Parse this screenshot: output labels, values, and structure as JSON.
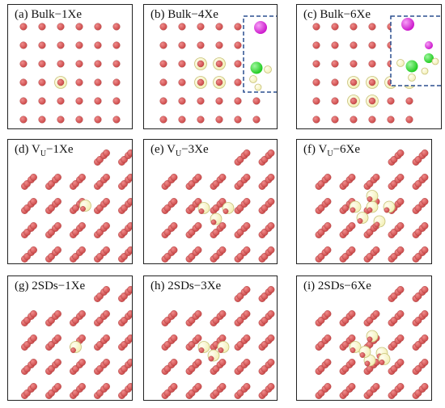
{
  "figure": {
    "panels": [
      {
        "id": "a",
        "letter": "(a)",
        "label": "Bulk−1Xe",
        "kind": "bulk",
        "xe": [
          [
            2,
            3
          ]
        ],
        "inset": "none"
      },
      {
        "id": "b",
        "letter": "(b)",
        "label": "Bulk−4Xe",
        "kind": "bulk",
        "xe": [
          [
            2,
            2
          ],
          [
            3,
            2
          ],
          [
            2,
            3
          ],
          [
            3,
            3
          ]
        ],
        "inset": "bulk4"
      },
      {
        "id": "c",
        "letter": "(c)",
        "label": "Bulk−6Xe",
        "kind": "bulk",
        "xe": [
          [
            2,
            3
          ],
          [
            3,
            3
          ],
          [
            4,
            3
          ],
          [
            5,
            3
          ],
          [
            2,
            4
          ],
          [
            3,
            4
          ]
        ],
        "inset": "bulk6"
      },
      {
        "id": "d",
        "letter": "(d)",
        "label": "V",
        "sub": "U",
        "suffix": "−1Xe",
        "kind": "diag",
        "xe": [
          [
            0.5,
            -0.2
          ]
        ],
        "inset": "none"
      },
      {
        "id": "e",
        "letter": "(e)",
        "label": "V",
        "sub": "U",
        "suffix": "−3Xe",
        "kind": "diag",
        "xe": [
          [
            -0.4,
            -0.1
          ],
          [
            0.6,
            -0.1
          ],
          [
            0.1,
            0.35
          ]
        ],
        "inset": "none"
      },
      {
        "id": "f",
        "letter": "(f)",
        "label": "V",
        "sub": "U",
        "suffix": "−6Xe",
        "kind": "diag",
        "xe": [
          [
            -0.5,
            -0.15
          ],
          [
            0.2,
            -0.15
          ],
          [
            0.9,
            -0.15
          ],
          [
            -0.2,
            0.3
          ],
          [
            0.5,
            0.45
          ],
          [
            0.2,
            -0.6
          ]
        ],
        "inset": "none"
      },
      {
        "id": "g",
        "letter": "(g)",
        "label": "2SDs−1Xe",
        "kind": "diag",
        "xe": [
          [
            0.1,
            0.0
          ]
        ],
        "inset": "none"
      },
      {
        "id": "h",
        "letter": "(h)",
        "label": "2SDs−3Xe",
        "kind": "diag",
        "xe": [
          [
            -0.4,
            0.0
          ],
          [
            0.4,
            0.0
          ],
          [
            0.0,
            0.35
          ]
        ],
        "inset": "none"
      },
      {
        "id": "i",
        "letter": "(i)",
        "label": "2SDs−6Xe",
        "kind": "diag",
        "xe": [
          [
            -0.5,
            0.0
          ],
          [
            0.2,
            -0.45
          ],
          [
            0.6,
            0.25
          ],
          [
            0.1,
            0.55
          ],
          [
            0.7,
            0.5
          ],
          [
            -0.1,
            0.2
          ]
        ],
        "inset": "none"
      }
    ]
  },
  "colors": {
    "uranium": "#cc4a4a",
    "uranium_highlight": "#f08c8c",
    "xenon": "#f3f0b8",
    "xenon_edge": "#c8c27a",
    "magenta": "#cc19cc",
    "green": "#22cc22",
    "frame": "#222222",
    "inset_border": "#2a4f8f"
  }
}
